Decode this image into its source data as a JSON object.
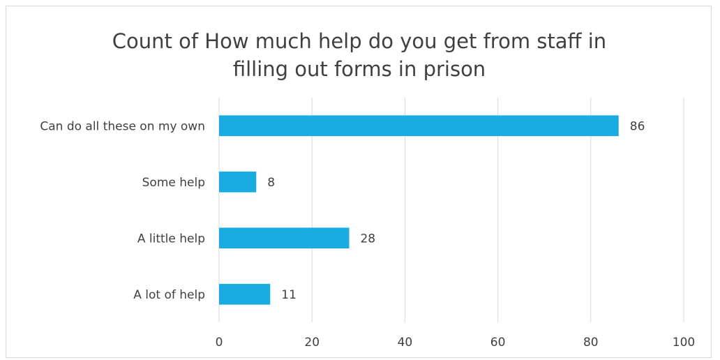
{
  "chart_data": {
    "type": "bar",
    "orientation": "horizontal",
    "title_lines": [
      "Count of How much help do you get from staff in",
      "filling out forms in prison"
    ],
    "categories": [
      "Can do all these on my own",
      "Some help",
      "A little help",
      "A lot of help"
    ],
    "values": [
      86,
      8,
      28,
      11
    ],
    "xlim": [
      0,
      100
    ],
    "xticks": [
      0,
      20,
      40,
      60,
      80,
      100
    ],
    "grid": true,
    "legend": "none",
    "data_labels": true,
    "bar_color": "#1aabe3"
  }
}
